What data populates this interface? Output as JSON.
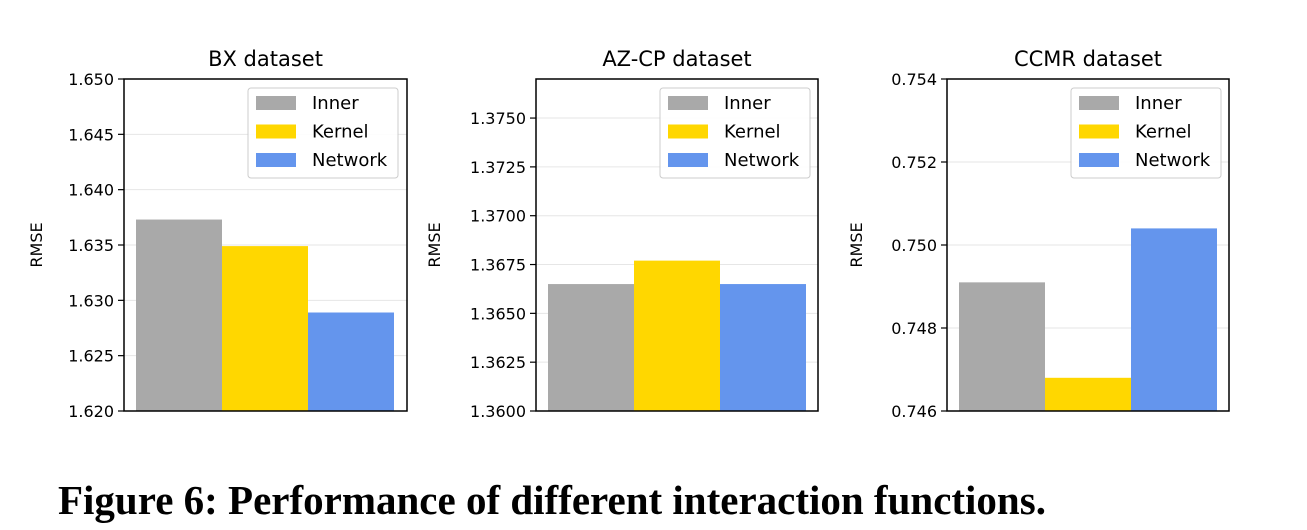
{
  "caption": "Figure 6: Performance of different interaction functions.",
  "colors": {
    "Inner": "#a9a9a9",
    "Kernel": "#ffd700",
    "Network": "#6495ed",
    "grid": "#e6e6e6"
  },
  "chart_data": [
    {
      "type": "bar",
      "title": "BX dataset",
      "xlabel": "",
      "ylabel": "RMSE",
      "ylim": [
        1.62,
        1.65
      ],
      "yticks": [
        "1.620",
        "1.625",
        "1.630",
        "1.635",
        "1.640",
        "1.645",
        "1.650"
      ],
      "grid": true,
      "legend_position": "top-right",
      "series": [
        {
          "name": "Inner",
          "values": [
            1.6373
          ]
        },
        {
          "name": "Kernel",
          "values": [
            1.6349
          ]
        },
        {
          "name": "Network",
          "values": [
            1.6289
          ]
        }
      ]
    },
    {
      "type": "bar",
      "title": "AZ-CP dataset",
      "xlabel": "",
      "ylabel": "RMSE",
      "ylim": [
        1.36,
        1.377
      ],
      "yticks": [
        "1.3600",
        "1.3625",
        "1.3650",
        "1.3675",
        "1.3700",
        "1.3725",
        "1.3750"
      ],
      "grid": true,
      "legend_position": "top-right",
      "series": [
        {
          "name": "Inner",
          "values": [
            1.3665
          ]
        },
        {
          "name": "Kernel",
          "values": [
            1.3677
          ]
        },
        {
          "name": "Network",
          "values": [
            1.3665
          ]
        }
      ]
    },
    {
      "type": "bar",
      "title": "CCMR dataset",
      "xlabel": "",
      "ylabel": "RMSE",
      "ylim": [
        0.746,
        0.754
      ],
      "yticks": [
        "0.746",
        "0.748",
        "0.750",
        "0.752",
        "0.754"
      ],
      "grid": true,
      "legend_position": "top-right",
      "series": [
        {
          "name": "Inner",
          "values": [
            0.7491
          ]
        },
        {
          "name": "Kernel",
          "values": [
            0.7468
          ]
        },
        {
          "name": "Network",
          "values": [
            0.7504
          ]
        }
      ]
    }
  ]
}
